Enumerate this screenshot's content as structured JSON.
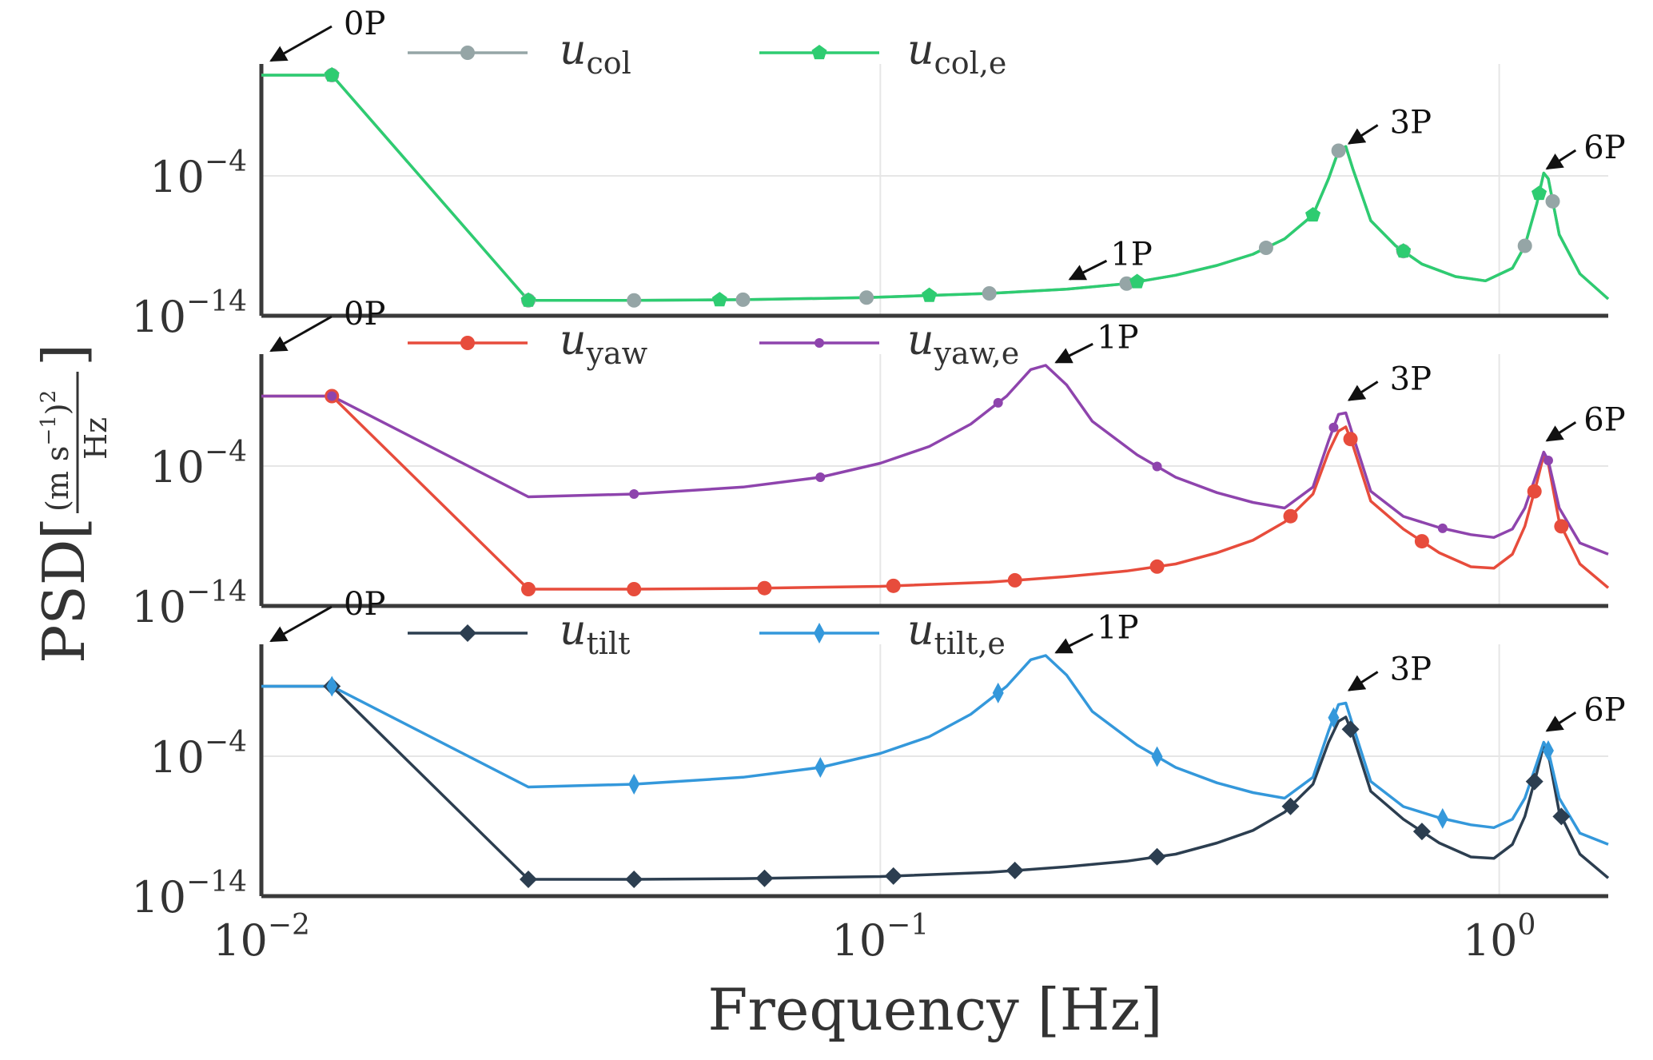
{
  "chart_data": [
    {
      "type": "line",
      "yscale": "log",
      "xscale": "log",
      "xlim": [
        0.01,
        1.5
      ],
      "ylim": [
        -14,
        4
      ],
      "yticks": [
        {
          "value": -4,
          "label_base": "10",
          "label_exp": "−4"
        },
        {
          "value": -14,
          "label_base": "10",
          "label_exp": "−14"
        }
      ],
      "series": [
        {
          "name": "u_col",
          "label_main": "u",
          "label_sub": "col",
          "color": "#95a5a6",
          "marker": "circle",
          "points": [
            [
              0.01,
              3.2
            ],
            [
              0.013,
              3.2
            ],
            [
              0.027,
              -12.9
            ],
            [
              0.04,
              -12.9
            ],
            [
              0.06,
              -12.85
            ],
            [
              0.095,
              -12.7
            ],
            [
              0.15,
              -12.4
            ],
            [
              0.2,
              -12.1
            ],
            [
              0.25,
              -11.7
            ],
            [
              0.3,
              -11.1
            ],
            [
              0.35,
              -10.4
            ],
            [
              0.4,
              -9.6
            ],
            [
              0.45,
              -8.5
            ],
            [
              0.5,
              -6.8
            ],
            [
              0.53,
              -4.2
            ],
            [
              0.55,
              -2.2
            ],
            [
              0.565,
              -1.9
            ],
            [
              0.58,
              -3.5
            ],
            [
              0.62,
              -7.2
            ],
            [
              0.68,
              -9.0
            ],
            [
              0.75,
              -10.3
            ],
            [
              0.85,
              -11.2
            ],
            [
              0.95,
              -11.5
            ],
            [
              1.05,
              -10.6
            ],
            [
              1.1,
              -9.0
            ],
            [
              1.15,
              -6.0
            ],
            [
              1.18,
              -3.8
            ],
            [
              1.2,
              -4.2
            ],
            [
              1.25,
              -8.2
            ],
            [
              1.35,
              -11.0
            ],
            [
              1.5,
              -12.8
            ]
          ],
          "markers_x": [
            0.013,
            0.027,
            0.04,
            0.06,
            0.095,
            0.15,
            0.25,
            0.42,
            0.55,
            0.7,
            1.1,
            1.22
          ]
        },
        {
          "name": "u_col,e",
          "label_main": "u",
          "label_sub": "col,e",
          "color": "#2ecc71",
          "marker": "pentagon",
          "points": [
            [
              0.01,
              3.2
            ],
            [
              0.013,
              3.2
            ],
            [
              0.027,
              -12.9
            ],
            [
              0.04,
              -12.9
            ],
            [
              0.06,
              -12.85
            ],
            [
              0.095,
              -12.7
            ],
            [
              0.15,
              -12.4
            ],
            [
              0.2,
              -12.1
            ],
            [
              0.25,
              -11.7
            ],
            [
              0.3,
              -11.1
            ],
            [
              0.35,
              -10.4
            ],
            [
              0.4,
              -9.6
            ],
            [
              0.45,
              -8.5
            ],
            [
              0.5,
              -6.8
            ],
            [
              0.53,
              -4.2
            ],
            [
              0.55,
              -2.2
            ],
            [
              0.565,
              -1.9
            ],
            [
              0.58,
              -3.5
            ],
            [
              0.62,
              -7.2
            ],
            [
              0.68,
              -9.0
            ],
            [
              0.75,
              -10.3
            ],
            [
              0.85,
              -11.2
            ],
            [
              0.95,
              -11.5
            ],
            [
              1.05,
              -10.6
            ],
            [
              1.1,
              -9.0
            ],
            [
              1.15,
              -6.0
            ],
            [
              1.18,
              -3.8
            ],
            [
              1.2,
              -4.2
            ],
            [
              1.25,
              -8.2
            ],
            [
              1.35,
              -11.0
            ],
            [
              1.5,
              -12.8
            ]
          ],
          "markers_x": [
            0.013,
            0.027,
            0.055,
            0.12,
            0.26,
            0.5,
            0.7,
            1.16
          ]
        }
      ],
      "annotations": [
        {
          "text": "0P",
          "x": 0.01,
          "y": 4.0
        },
        {
          "text": "1P",
          "x": 0.2,
          "y": -11.5
        },
        {
          "text": "3P",
          "x": 0.565,
          "y": -1.8
        },
        {
          "text": "6P",
          "x": 1.18,
          "y": -3.6
        }
      ]
    },
    {
      "type": "line",
      "yscale": "log",
      "xscale": "log",
      "xlim": [
        0.01,
        1.5
      ],
      "ylim": [
        -14,
        4
      ],
      "yticks": [
        {
          "value": -4,
          "label_base": "10",
          "label_exp": "−4"
        },
        {
          "value": -14,
          "label_base": "10",
          "label_exp": "−14"
        }
      ],
      "series": [
        {
          "name": "u_yaw",
          "label_main": "u",
          "label_sub": "yaw",
          "color": "#e74c3c",
          "marker": "circle",
          "points": [
            [
              0.01,
              1.0
            ],
            [
              0.013,
              1.0
            ],
            [
              0.027,
              -12.8
            ],
            [
              0.04,
              -12.8
            ],
            [
              0.06,
              -12.75
            ],
            [
              0.1,
              -12.6
            ],
            [
              0.15,
              -12.3
            ],
            [
              0.2,
              -11.9
            ],
            [
              0.25,
              -11.5
            ],
            [
              0.3,
              -11.0
            ],
            [
              0.35,
              -10.2
            ],
            [
              0.4,
              -9.3
            ],
            [
              0.45,
              -8.0
            ],
            [
              0.5,
              -6.0
            ],
            [
              0.53,
              -3.0
            ],
            [
              0.55,
              -1.5
            ],
            [
              0.565,
              -1.2
            ],
            [
              0.58,
              -2.5
            ],
            [
              0.62,
              -6.5
            ],
            [
              0.7,
              -8.5
            ],
            [
              0.8,
              -10.2
            ],
            [
              0.9,
              -11.2
            ],
            [
              0.98,
              -11.3
            ],
            [
              1.05,
              -10.3
            ],
            [
              1.1,
              -8.3
            ],
            [
              1.15,
              -5.2
            ],
            [
              1.18,
              -3.2
            ],
            [
              1.2,
              -3.8
            ],
            [
              1.25,
              -8.0
            ],
            [
              1.35,
              -11.0
            ],
            [
              1.5,
              -12.7
            ]
          ],
          "markers_x": [
            0.013,
            0.027,
            0.04,
            0.065,
            0.105,
            0.165,
            0.28,
            0.46,
            0.575,
            0.75,
            1.14,
            1.26
          ]
        },
        {
          "name": "u_yaw,e",
          "label_main": "u",
          "label_sub": "yaw,e",
          "color": "#8e44ad",
          "marker": "dot",
          "points": [
            [
              0.01,
              1.0
            ],
            [
              0.013,
              1.0
            ],
            [
              0.027,
              -6.2
            ],
            [
              0.04,
              -6.0
            ],
            [
              0.06,
              -5.5
            ],
            [
              0.08,
              -4.8
            ],
            [
              0.1,
              -3.8
            ],
            [
              0.12,
              -2.6
            ],
            [
              0.14,
              -1.0
            ],
            [
              0.16,
              1.0
            ],
            [
              0.175,
              2.9
            ],
            [
              0.185,
              3.2
            ],
            [
              0.2,
              1.8
            ],
            [
              0.22,
              -0.8
            ],
            [
              0.26,
              -3.2
            ],
            [
              0.3,
              -4.8
            ],
            [
              0.35,
              -5.9
            ],
            [
              0.4,
              -6.6
            ],
            [
              0.45,
              -7.0
            ],
            [
              0.5,
              -5.5
            ],
            [
              0.53,
              -2.2
            ],
            [
              0.55,
              -0.3
            ],
            [
              0.565,
              -0.2
            ],
            [
              0.58,
              -1.8
            ],
            [
              0.62,
              -5.8
            ],
            [
              0.7,
              -7.6
            ],
            [
              0.8,
              -8.4
            ],
            [
              0.9,
              -8.9
            ],
            [
              0.98,
              -9.1
            ],
            [
              1.05,
              -8.5
            ],
            [
              1.1,
              -7.0
            ],
            [
              1.15,
              -4.5
            ],
            [
              1.18,
              -3.0
            ],
            [
              1.2,
              -3.6
            ],
            [
              1.25,
              -7.0
            ],
            [
              1.35,
              -9.5
            ],
            [
              1.5,
              -10.3
            ]
          ],
          "markers_x": [
            0.013,
            0.04,
            0.08,
            0.155,
            0.28,
            0.54,
            0.81,
            1.2
          ]
        }
      ],
      "annotations": [
        {
          "text": "0P",
          "x": 0.01,
          "y": 3.8
        },
        {
          "text": "1P",
          "x": 0.19,
          "y": 3.3
        },
        {
          "text": "3P",
          "x": 0.565,
          "y": 0.6
        },
        {
          "text": "6P",
          "x": 1.18,
          "y": -2.3
        }
      ]
    },
    {
      "type": "line",
      "yscale": "log",
      "xscale": "log",
      "xlim": [
        0.01,
        1.5
      ],
      "ylim": [
        -14,
        4
      ],
      "yticks": [
        {
          "value": -4,
          "label_base": "10",
          "label_exp": "−4"
        },
        {
          "value": -14,
          "label_base": "10",
          "label_exp": "−14"
        }
      ],
      "series": [
        {
          "name": "u_tilt",
          "label_main": "u",
          "label_sub": "tilt",
          "color": "#2c3e50",
          "marker": "diamond",
          "points": [
            [
              0.01,
              1.0
            ],
            [
              0.013,
              1.0
            ],
            [
              0.027,
              -12.8
            ],
            [
              0.04,
              -12.8
            ],
            [
              0.06,
              -12.75
            ],
            [
              0.1,
              -12.6
            ],
            [
              0.15,
              -12.3
            ],
            [
              0.2,
              -11.9
            ],
            [
              0.25,
              -11.5
            ],
            [
              0.3,
              -11.0
            ],
            [
              0.35,
              -10.2
            ],
            [
              0.4,
              -9.3
            ],
            [
              0.45,
              -8.0
            ],
            [
              0.5,
              -6.0
            ],
            [
              0.53,
              -3.0
            ],
            [
              0.55,
              -1.5
            ],
            [
              0.565,
              -1.2
            ],
            [
              0.58,
              -2.5
            ],
            [
              0.62,
              -6.5
            ],
            [
              0.7,
              -8.5
            ],
            [
              0.8,
              -10.2
            ],
            [
              0.9,
              -11.2
            ],
            [
              0.98,
              -11.3
            ],
            [
              1.05,
              -10.3
            ],
            [
              1.1,
              -8.3
            ],
            [
              1.15,
              -5.2
            ],
            [
              1.18,
              -3.2
            ],
            [
              1.2,
              -3.8
            ],
            [
              1.25,
              -8.0
            ],
            [
              1.35,
              -11.0
            ],
            [
              1.5,
              -12.7
            ]
          ],
          "markers_x": [
            0.013,
            0.027,
            0.04,
            0.065,
            0.105,
            0.165,
            0.28,
            0.46,
            0.575,
            0.75,
            1.14,
            1.26
          ]
        },
        {
          "name": "u_tilt,e",
          "label_main": "u",
          "label_sub": "tilt,e",
          "color": "#3498db",
          "marker": "thin-diamond",
          "points": [
            [
              0.01,
              1.0
            ],
            [
              0.013,
              1.0
            ],
            [
              0.027,
              -6.2
            ],
            [
              0.04,
              -6.0
            ],
            [
              0.06,
              -5.5
            ],
            [
              0.08,
              -4.8
            ],
            [
              0.1,
              -3.8
            ],
            [
              0.12,
              -2.6
            ],
            [
              0.14,
              -1.0
            ],
            [
              0.16,
              1.0
            ],
            [
              0.175,
              2.9
            ],
            [
              0.185,
              3.2
            ],
            [
              0.2,
              1.8
            ],
            [
              0.22,
              -0.8
            ],
            [
              0.26,
              -3.2
            ],
            [
              0.3,
              -4.8
            ],
            [
              0.35,
              -5.9
            ],
            [
              0.4,
              -6.6
            ],
            [
              0.45,
              -7.0
            ],
            [
              0.5,
              -5.5
            ],
            [
              0.53,
              -2.2
            ],
            [
              0.55,
              -0.3
            ],
            [
              0.565,
              -0.2
            ],
            [
              0.58,
              -1.8
            ],
            [
              0.62,
              -5.8
            ],
            [
              0.7,
              -7.6
            ],
            [
              0.8,
              -8.4
            ],
            [
              0.9,
              -8.9
            ],
            [
              0.98,
              -9.1
            ],
            [
              1.05,
              -8.5
            ],
            [
              1.1,
              -7.0
            ],
            [
              1.15,
              -4.5
            ],
            [
              1.18,
              -3.0
            ],
            [
              1.2,
              -3.6
            ],
            [
              1.25,
              -7.0
            ],
            [
              1.35,
              -9.5
            ],
            [
              1.5,
              -10.3
            ]
          ],
          "markers_x": [
            0.013,
            0.04,
            0.08,
            0.155,
            0.28,
            0.54,
            0.81,
            1.2
          ]
        }
      ],
      "annotations": [
        {
          "text": "0P",
          "x": 0.01,
          "y": 3.8
        },
        {
          "text": "1P",
          "x": 0.19,
          "y": 3.3
        },
        {
          "text": "3P",
          "x": 0.565,
          "y": 0.6
        },
        {
          "text": "6P",
          "x": 1.18,
          "y": -2.3
        }
      ]
    }
  ],
  "axes": {
    "xlabel": "Frequency [Hz]",
    "ylabel_prefix": "PSD",
    "ylabel_num": "(m s",
    "ylabel_num_exp": "−1",
    "ylabel_num_close": ")",
    "ylabel_num_pow": "2",
    "ylabel_den": "Hz",
    "xticks": [
      {
        "value": 0.01,
        "label_base": "10",
        "label_exp": "−2"
      },
      {
        "value": 0.1,
        "label_base": "10",
        "label_exp": "−1"
      },
      {
        "value": 1.0,
        "label_base": "10",
        "label_exp": "0"
      }
    ]
  }
}
